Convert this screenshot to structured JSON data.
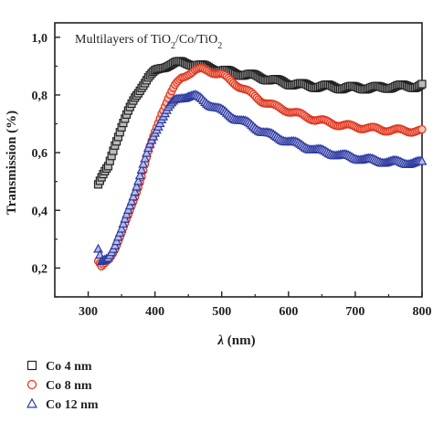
{
  "chart_data": {
    "type": "scatter",
    "title_parts": [
      "Multilayers of TiO",
      "2",
      "/Co/TiO",
      "2"
    ],
    "xlabel_symbol": "λ",
    "xlabel_unit": " (nm)",
    "ylabel": "Transmission (%)",
    "xlim": [
      250,
      800
    ],
    "ylim": [
      0.1,
      1.05
    ],
    "x_ticks": [
      300,
      400,
      500,
      600,
      700,
      800
    ],
    "y_ticks": [
      0.2,
      0.4,
      0.6,
      0.8,
      1.0
    ],
    "y_tick_labels": [
      "0,2",
      "0,4",
      "0,6",
      "0,8",
      "1,0"
    ],
    "grid": false,
    "legend_position": "bottom-left-outside",
    "series": [
      {
        "name": "Co 4 nm",
        "marker": "square",
        "color": "#222222",
        "fill": "#bbbbbb",
        "x": [
          315,
          320,
          330,
          340,
          350,
          360,
          370,
          380,
          390,
          400,
          410,
          420,
          430,
          440,
          450,
          460,
          470,
          480,
          500,
          520,
          540,
          560,
          580,
          600,
          620,
          640,
          660,
          680,
          700,
          720,
          740,
          760,
          780,
          790,
          800
        ],
        "y": [
          0.49,
          0.51,
          0.55,
          0.63,
          0.69,
          0.74,
          0.79,
          0.83,
          0.86,
          0.88,
          0.895,
          0.905,
          0.91,
          0.912,
          0.91,
          0.905,
          0.9,
          0.895,
          0.885,
          0.875,
          0.87,
          0.86,
          0.85,
          0.84,
          0.835,
          0.83,
          0.83,
          0.825,
          0.825,
          0.825,
          0.825,
          0.83,
          0.83,
          0.83,
          0.835
        ]
      },
      {
        "name": "Co 8 nm",
        "marker": "circle",
        "color": "#e0341c",
        "fill": "#f6c2b6",
        "x": [
          315,
          320,
          330,
          340,
          350,
          360,
          370,
          380,
          390,
          400,
          410,
          420,
          430,
          440,
          450,
          460,
          470,
          480,
          500,
          520,
          540,
          560,
          580,
          600,
          620,
          640,
          660,
          680,
          700,
          720,
          740,
          760,
          780,
          800
        ],
        "y": [
          0.22,
          0.2,
          0.23,
          0.27,
          0.32,
          0.38,
          0.45,
          0.52,
          0.6,
          0.67,
          0.74,
          0.79,
          0.83,
          0.86,
          0.875,
          0.885,
          0.888,
          0.885,
          0.87,
          0.84,
          0.81,
          0.78,
          0.76,
          0.745,
          0.73,
          0.715,
          0.705,
          0.695,
          0.69,
          0.685,
          0.68,
          0.678,
          0.676,
          0.675
        ]
      },
      {
        "name": "Co 12 nm",
        "marker": "triangle",
        "color": "#2e3aa0",
        "fill": "#b8bde6",
        "x": [
          315,
          320,
          330,
          340,
          350,
          360,
          370,
          380,
          390,
          400,
          410,
          420,
          430,
          440,
          450,
          460,
          470,
          480,
          500,
          520,
          540,
          560,
          580,
          600,
          620,
          640,
          660,
          680,
          700,
          720,
          740,
          760,
          780,
          800
        ],
        "y": [
          0.26,
          0.22,
          0.24,
          0.28,
          0.33,
          0.4,
          0.47,
          0.54,
          0.61,
          0.67,
          0.72,
          0.755,
          0.78,
          0.792,
          0.797,
          0.795,
          0.785,
          0.77,
          0.745,
          0.72,
          0.7,
          0.675,
          0.655,
          0.64,
          0.625,
          0.61,
          0.6,
          0.59,
          0.582,
          0.575,
          0.57,
          0.567,
          0.565,
          0.565
        ]
      }
    ]
  }
}
